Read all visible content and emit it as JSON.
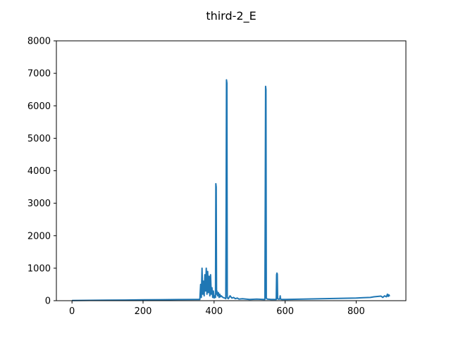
{
  "chart_data": {
    "type": "line",
    "title": "third-2_E",
    "xlabel": "",
    "ylabel": "",
    "xlim": [
      -44,
      940
    ],
    "ylim": [
      0,
      8000
    ],
    "xticks": [
      0,
      200,
      400,
      600,
      800
    ],
    "yticks": [
      0,
      1000,
      2000,
      3000,
      4000,
      5000,
      6000,
      7000,
      8000
    ],
    "grid": false,
    "series": [
      {
        "color": "#1f77b4",
        "x": [
          0,
          50,
          100,
          150,
          200,
          250,
          300,
          350,
          360,
          362,
          364,
          366,
          368,
          370,
          372,
          374,
          376,
          378,
          380,
          382,
          384,
          386,
          388,
          390,
          392,
          394,
          396,
          398,
          400,
          402,
          404,
          405,
          406,
          407,
          408,
          410,
          412,
          414,
          416,
          418,
          420,
          425,
          430,
          433,
          434,
          435,
          436,
          437,
          438,
          440,
          445,
          450,
          455,
          460,
          465,
          470,
          480,
          490,
          500,
          520,
          540,
          543,
          544,
          545,
          546,
          547,
          548,
          550,
          560,
          570,
          575,
          576,
          577,
          578,
          579,
          580,
          585,
          586,
          587,
          590,
          600,
          650,
          700,
          750,
          800,
          820,
          840,
          850,
          860,
          870,
          875,
          880,
          885,
          888,
          890,
          892,
          894,
          895
        ],
        "y": [
          5,
          10,
          15,
          20,
          25,
          30,
          35,
          40,
          40,
          500,
          100,
          1000,
          200,
          600,
          150,
          800,
          300,
          1000,
          200,
          900,
          250,
          750,
          150,
          800,
          200,
          400,
          100,
          300,
          80,
          150,
          100,
          3600,
          3500,
          200,
          300,
          150,
          250,
          100,
          200,
          120,
          150,
          100,
          80,
          60,
          3000,
          6800,
          6700,
          100,
          80,
          60,
          150,
          80,
          100,
          60,
          80,
          50,
          60,
          50,
          40,
          50,
          40,
          40,
          3000,
          6600,
          6500,
          80,
          60,
          50,
          40,
          40,
          40,
          800,
          850,
          820,
          60,
          50,
          50,
          150,
          50,
          40,
          40,
          50,
          60,
          70,
          80,
          90,
          100,
          120,
          130,
          140,
          100,
          150,
          120,
          200,
          130,
          180,
          150,
          150
        ]
      }
    ]
  }
}
